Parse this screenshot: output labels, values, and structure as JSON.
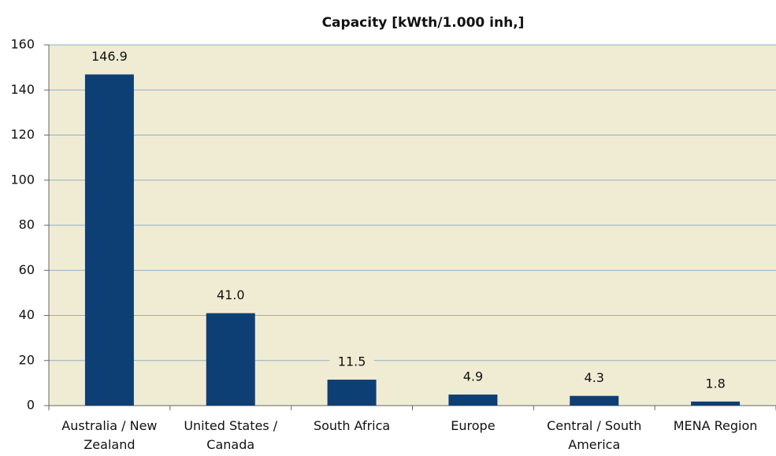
{
  "chart_data": {
    "type": "bar",
    "title": "Capacity [kWth/1.000 inh,]",
    "categories": [
      "Australia / New Zealand",
      "United States / Canada",
      "South Africa",
      "Europe",
      "Central / South America",
      "MENA Region"
    ],
    "values": [
      146.9,
      41.0,
      11.5,
      4.9,
      4.3,
      1.8
    ],
    "value_labels": [
      "146.9",
      "41.0",
      "11.5",
      "4.9",
      "4.3",
      "1.8"
    ],
    "color": "#0e3f74",
    "ylim": [
      0,
      160
    ],
    "yticks": [
      0,
      20,
      40,
      60,
      80,
      100,
      120,
      140,
      160
    ],
    "grid": true
  }
}
